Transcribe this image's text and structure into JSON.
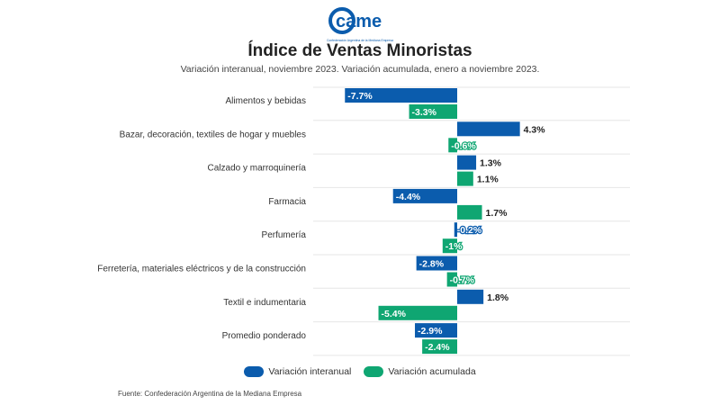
{
  "logo": {
    "wordmark": "came",
    "tagline": "Confederación Argentina de la Mediana Empresa"
  },
  "colors": {
    "interanual": "#0b5cad",
    "acumulada": "#0fa672",
    "brand": "#0b5cad"
  },
  "chart_data": {
    "type": "bar",
    "orientation": "horizontal",
    "title": "Índice de Ventas Minoristas",
    "subtitle": "Variación interanual, noviembre 2023. Variación acumulada, enero a noviembre 2023.",
    "categories": [
      "Alimentos y bebidas",
      "Bazar, decoración, textiles de hogar y muebles",
      "Calzado y marroquinería",
      "Farmacia",
      "Perfumería",
      "Ferretería, materiales eléctricos y de la construcción",
      "Textil e indumentaria",
      "Promedio ponderado"
    ],
    "series": [
      {
        "name": "Variación interanual",
        "values": [
          -7.7,
          4.3,
          1.3,
          -4.4,
          -0.2,
          -2.8,
          1.8,
          -2.9
        ],
        "labels": [
          "-7.7%",
          "4.3%",
          "1.3%",
          "-4.4%",
          "-0.2%",
          "-2.8%",
          "1.8%",
          "-2.9%"
        ]
      },
      {
        "name": "Variación acumulada",
        "values": [
          -3.3,
          -0.6,
          1.1,
          1.7,
          -1,
          -0.7,
          -5.4,
          -2.4
        ],
        "labels": [
          "-3.3%",
          "-0.6%",
          "1.1%",
          "1.7%",
          "-1%",
          "-0.7%",
          "-5.4%",
          "-2.4%"
        ]
      }
    ],
    "xlim": [
      -8,
      4.5
    ],
    "grid": true,
    "legend_position": "bottom"
  },
  "source": "Fuente: Confederación Argentina de la Mediana Empresa"
}
